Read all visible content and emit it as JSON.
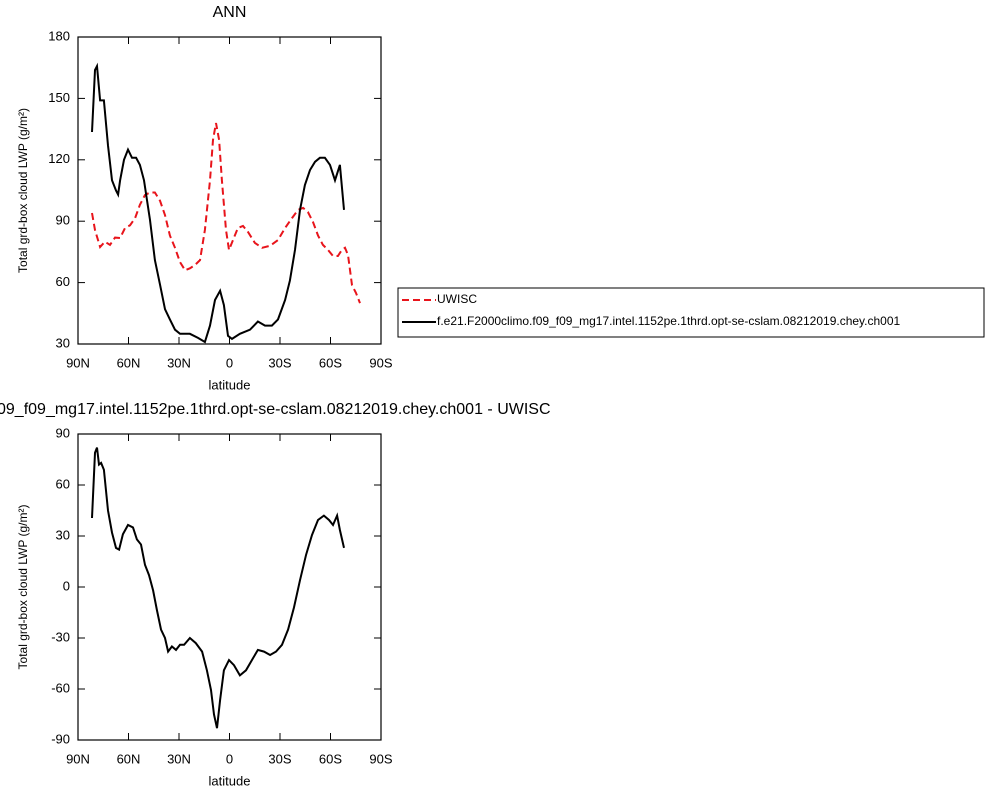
{
  "chart_data": [
    {
      "type": "line",
      "title": "ANN",
      "x_label": "latitude",
      "y_label": "Total grd-box cloud LWP (g/m²)",
      "xlim": [
        90,
        -90
      ],
      "xticks": [
        {
          "value": 90,
          "label": "90N"
        },
        {
          "value": 60,
          "label": "60N"
        },
        {
          "value": 30,
          "label": "30N"
        },
        0,
        {
          "value": -30,
          "label": "30S"
        },
        {
          "value": -60,
          "label": "60S"
        },
        {
          "value": -90,
          "label": "90S"
        }
      ],
      "ylim": [
        30,
        180
      ],
      "yticks": [
        30,
        60,
        90,
        120,
        150,
        180
      ],
      "legend": "right",
      "series": [
        {
          "name": "UWISC",
          "color": "#e8141b",
          "dashed": true,
          "x": [
            81.7,
            79.9,
            76.9,
            74,
            71,
            68,
            65,
            62.1,
            59.1,
            56.1,
            53.2,
            50.2,
            47.2,
            44.3,
            41.3,
            38.3,
            35.4,
            32.4,
            29.4,
            26.4,
            23.5,
            20.5,
            17.5,
            14.6,
            11.6,
            9.8,
            8,
            6.2,
            4.5,
            2.1,
            0.3,
            -2.1,
            -5,
            -8,
            -11,
            -15.1,
            -19.3,
            -24.1,
            -28.8,
            -33,
            -37.1,
            -40.7,
            -43.7,
            -46.6,
            -49.6,
            -52.6,
            -55.5,
            -58.5,
            -61.5,
            -64.4,
            -66.8,
            -68.6,
            -70.4,
            -72.8,
            -75.1,
            -77.5
          ],
          "values": [
            94,
            85.7,
            77.4,
            80,
            78.4,
            82,
            81.8,
            86.7,
            88,
            91.5,
            98,
            102.8,
            104,
            104,
            100,
            93,
            83,
            77,
            70,
            66,
            67,
            68.6,
            71,
            85.7,
            110,
            129.7,
            138,
            129.7,
            110,
            85.7,
            76,
            80.8,
            86.7,
            87.7,
            84.7,
            79.4,
            77,
            78,
            80.8,
            86.7,
            91.5,
            95.5,
            96.5,
            94.5,
            89.6,
            83,
            78.4,
            76,
            73,
            73,
            76,
            77,
            73.5,
            58.8,
            55,
            50
          ]
        },
        {
          "name": "f.e21.F2000climo.f09_f09_mg17.intel.1152pe.1thrd.opt-se-cslam.08212019.chey.ch001",
          "color": "#000000",
          "dashed": false,
          "x": [
            81.7,
            79.9,
            78.7,
            76.9,
            74.6,
            72.2,
            69.8,
            67.4,
            66.2,
            65,
            62.7,
            60.3,
            57.9,
            55.5,
            53.2,
            50.8,
            47.2,
            44.3,
            41.3,
            38.3,
            35.4,
            32.4,
            29.4,
            23.5,
            18.7,
            14.6,
            11.6,
            8.6,
            5.6,
            3.3,
            0.9,
            -1.5,
            -6.2,
            -12.2,
            -16.9,
            -21.1,
            -25.2,
            -28.8,
            -33,
            -35.9,
            -38.9,
            -41.9,
            -44.8,
            -47.8,
            -50.8,
            -53.7,
            -56.7,
            -59.7,
            -62.7,
            -65.6,
            -68
          ],
          "values": [
            133.6,
            163.9,
            165.8,
            149,
            149,
            127,
            110,
            105,
            103,
            110,
            120,
            125,
            121,
            121,
            117.5,
            110,
            90.6,
            71,
            59,
            47,
            42,
            37,
            35,
            35,
            33,
            31,
            39,
            51.5,
            56,
            49,
            34,
            32.5,
            35,
            37,
            41,
            39,
            39,
            42,
            51.5,
            61,
            76,
            95.5,
            107.7,
            115,
            119,
            121,
            121,
            117.5,
            110,
            117.5,
            95.5
          ]
        }
      ]
    },
    {
      "type": "line",
      "title": "09_f09_mg17.intel.1152pe.1thrd.opt-se-cslam.08212019.chey.ch001 - UWISC",
      "x_label": "latitude",
      "y_label": "Total grd-box cloud LWP (g/m²)",
      "xlim": [
        90,
        -90
      ],
      "xticks": [
        {
          "value": 90,
          "label": "90N"
        },
        {
          "value": 60,
          "label": "60N"
        },
        {
          "value": 30,
          "label": "30N"
        },
        0,
        {
          "value": -30,
          "label": "30S"
        },
        {
          "value": -60,
          "label": "60S"
        },
        {
          "value": -90,
          "label": "90S"
        }
      ],
      "ylim": [
        -90,
        90
      ],
      "yticks": [
        -90,
        -60,
        -30,
        0,
        30,
        60,
        90
      ],
      "series": [
        {
          "color": "#000000",
          "dashed": false,
          "x": [
            81.7,
            79.9,
            78.7,
            77.5,
            76.3,
            74.6,
            72.2,
            69.8,
            67.4,
            65.6,
            63.3,
            60.3,
            57.3,
            55,
            52.6,
            50.2,
            47.8,
            45.4,
            43.1,
            40.7,
            38.3,
            36.5,
            34.2,
            31.8,
            29.4,
            27,
            23.5,
            20,
            16.3,
            13.4,
            11,
            9.2,
            7.4,
            5.6,
            3.3,
            0.3,
            -2.7,
            -6.2,
            -9.8,
            -13.3,
            -16.9,
            -20.5,
            -24.1,
            -27.6,
            -31.2,
            -34.8,
            -38.3,
            -41.9,
            -45.5,
            -49,
            -52.6,
            -56.1,
            -59.1,
            -61.5,
            -63.9,
            -65.6,
            -68
          ],
          "values": [
            40.6,
            79,
            82,
            72,
            73,
            69,
            45,
            32,
            23,
            22,
            31,
            36.5,
            35,
            28,
            25,
            13,
            7,
            -2,
            -13.5,
            -25,
            -30,
            -38,
            -35,
            -37,
            -34,
            -34,
            -30,
            -33,
            -38,
            -49,
            -60.6,
            -75,
            -83,
            -66.5,
            -49,
            -43,
            -46,
            -52,
            -49,
            -43,
            -37,
            -38,
            -40,
            -38,
            -34,
            -25,
            -12,
            4,
            19,
            30.6,
            39.4,
            42,
            39.4,
            36.5,
            42,
            33.5,
            23
          ]
        }
      ]
    }
  ]
}
